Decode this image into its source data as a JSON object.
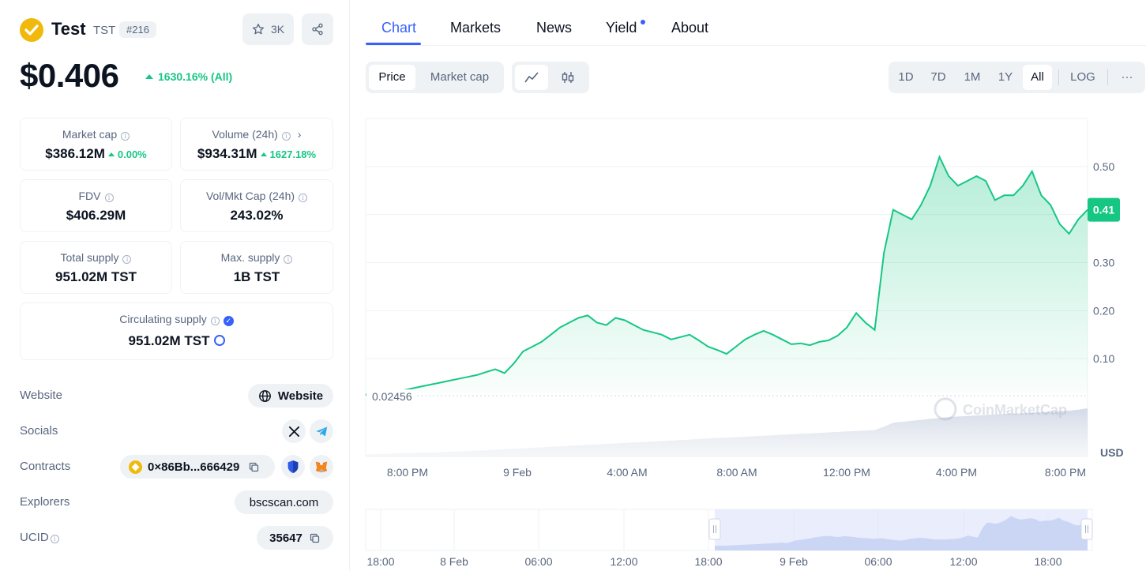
{
  "coin": {
    "name": "Test",
    "symbol": "TST",
    "rank": "#216",
    "watchlist_count": "3K",
    "price": "$0.406",
    "price_change": "1630.16% (All)"
  },
  "stats": {
    "market_cap": {
      "label": "Market cap",
      "value": "$386.12M",
      "change": "0.00%"
    },
    "volume": {
      "label": "Volume (24h)",
      "value": "$934.31M",
      "change": "1627.18%"
    },
    "fdv": {
      "label": "FDV",
      "value": "$406.29M"
    },
    "vol_mkt_cap": {
      "label": "Vol/Mkt Cap (24h)",
      "value": "243.02%"
    },
    "total_supply": {
      "label": "Total supply",
      "value": "951.02M TST"
    },
    "max_supply": {
      "label": "Max. supply",
      "value": "1B TST"
    },
    "circulating_supply": {
      "label": "Circulating supply",
      "value": "951.02M TST"
    }
  },
  "links": {
    "website": {
      "label": "Website",
      "button": "Website"
    },
    "socials": {
      "label": "Socials"
    },
    "contracts": {
      "label": "Contracts",
      "address": "0×86Bb...666429"
    },
    "explorers": {
      "label": "Explorers",
      "value": "bscscan.com"
    },
    "ucid": {
      "label": "UCID",
      "value": "35647"
    }
  },
  "tabs": [
    {
      "label": "Chart",
      "active": true
    },
    {
      "label": "Markets"
    },
    {
      "label": "News"
    },
    {
      "label": "Yield"
    },
    {
      "label": "About"
    }
  ],
  "controls": {
    "price_btn": "Price",
    "market_cap_btn": "Market cap",
    "ranges": [
      "1D",
      "7D",
      "1M",
      "1Y",
      "All"
    ],
    "log_btn": "LOG",
    "more": "···"
  },
  "colors": {
    "accent": "#3861fb",
    "up": "#16c784",
    "text_muted": "#58667e"
  },
  "chart_data": {
    "type": "line",
    "currency": "USD",
    "watermark": "CoinMarketCap",
    "current_price_label": "0.41",
    "start_price_label": "0.02456",
    "y_ticks": [
      "0.50",
      "0.40",
      "0.30",
      "0.20",
      "0.10"
    ],
    "y_ticks_visible": [
      "0.50",
      "",
      "0.30",
      "0.20",
      "0.10"
    ],
    "ylim": [
      0,
      0.6
    ],
    "x_ticks": [
      "8:00 PM",
      "9 Feb",
      "4:00 AM",
      "8:00 AM",
      "12:00 PM",
      "4:00 PM",
      "8:00 PM"
    ],
    "navigator_ticks": [
      "18:00",
      "8 Feb",
      "06:00",
      "12:00",
      "18:00",
      "9 Feb",
      "06:00",
      "12:00",
      "18:00"
    ],
    "series": [
      {
        "values": [
          0.025,
          0.028,
          0.026,
          0.03,
          0.034,
          0.038,
          0.042,
          0.046,
          0.05,
          0.054,
          0.058,
          0.062,
          0.066,
          0.072,
          0.078,
          0.07,
          0.09,
          0.115,
          0.125,
          0.135,
          0.15,
          0.165,
          0.175,
          0.185,
          0.19,
          0.175,
          0.17,
          0.185,
          0.18,
          0.17,
          0.16,
          0.155,
          0.15,
          0.14,
          0.145,
          0.15,
          0.138,
          0.125,
          0.118,
          0.11,
          0.125,
          0.14,
          0.15,
          0.158,
          0.15,
          0.14,
          0.13,
          0.132,
          0.128,
          0.135,
          0.138,
          0.148,
          0.165,
          0.195,
          0.175,
          0.16,
          0.32,
          0.41,
          0.4,
          0.39,
          0.42,
          0.46,
          0.52,
          0.48,
          0.46,
          0.47,
          0.48,
          0.47,
          0.43,
          0.44,
          0.44,
          0.46,
          0.49,
          0.44,
          0.42,
          0.38,
          0.36,
          0.39,
          0.41
        ]
      }
    ],
    "volume_series": [
      0.04,
      0.05,
      0.05,
      0.06,
      0.07,
      0.07,
      0.08,
      0.08,
      0.09,
      0.1,
      0.1,
      0.11,
      0.12,
      0.13,
      0.14,
      0.15,
      0.16,
      0.17,
      0.18,
      0.19,
      0.2,
      0.21,
      0.22,
      0.23,
      0.24,
      0.25,
      0.26,
      0.27,
      0.28,
      0.29,
      0.3,
      0.31,
      0.32,
      0.33,
      0.34,
      0.35,
      0.36,
      0.37,
      0.38,
      0.39,
      0.4,
      0.41,
      0.42,
      0.43,
      0.44,
      0.45,
      0.46,
      0.47,
      0.48,
      0.49,
      0.5,
      0.51,
      0.52,
      0.53,
      0.54,
      0.55,
      0.62,
      0.7,
      0.72,
      0.74,
      0.76,
      0.78,
      0.8,
      0.82,
      0.83,
      0.84,
      0.85,
      0.86,
      0.87,
      0.88,
      0.89,
      0.9,
      0.91,
      0.92,
      0.93,
      0.94,
      0.95,
      0.97,
      1.0
    ]
  }
}
